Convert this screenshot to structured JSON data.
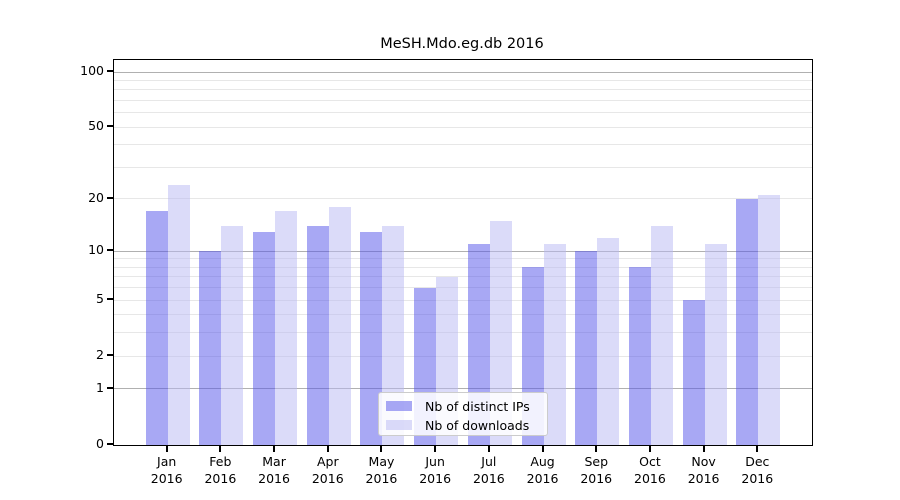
{
  "title": "MeSH.Mdo.eg.db 2016",
  "chart_data": {
    "type": "bar",
    "title": "MeSH.Mdo.eg.db 2016",
    "categories": [
      "Jan",
      "Feb",
      "Mar",
      "Apr",
      "May",
      "Jun",
      "Jul",
      "Aug",
      "Sep",
      "Oct",
      "Nov",
      "Dec"
    ],
    "year_label": "2016",
    "series": [
      {
        "name": "Nb of distinct IPs",
        "key": "distinct-ips",
        "color": "#a8a8f4",
        "color_rgba": "rgba(81,81,233,0.5)",
        "values": [
          17,
          10,
          13,
          14,
          13,
          6,
          11,
          8,
          10,
          8,
          5,
          20
        ]
      },
      {
        "name": "Nb of downloads",
        "key": "downloads",
        "color": "#dbdbf9",
        "color_rgba": "rgba(183,183,243,0.5)",
        "values": [
          24,
          14,
          17,
          18,
          14,
          7,
          15,
          11,
          12,
          14,
          11,
          21
        ]
      }
    ],
    "yticks": [
      0,
      1,
      2,
      5,
      10,
      20,
      50,
      100
    ],
    "ylim": [
      0,
      100
    ],
    "yscale": "log10(v+1)",
    "grid": true,
    "grid_major_color": "#b0b0b0",
    "grid_minor_color": "#e7e7e7",
    "axis_color": "#000000",
    "legend_position": "inside-bottom-center"
  }
}
